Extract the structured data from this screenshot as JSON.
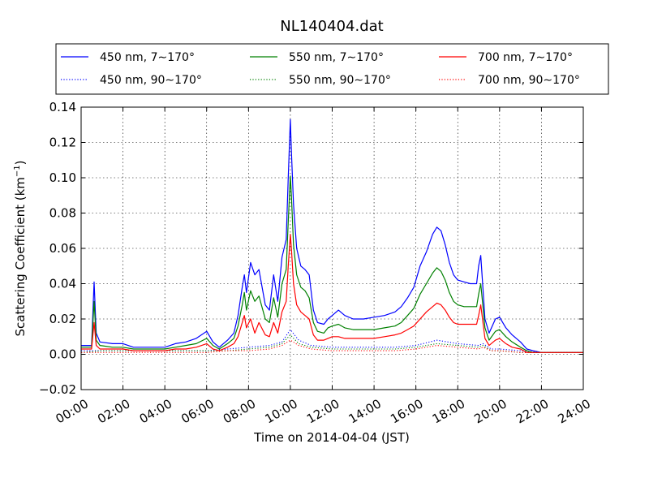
{
  "chart_data": {
    "type": "line",
    "title": "NL140404.dat",
    "xlabel": "Time on 2014-04-04 (JST)",
    "ylabel_main": "Scattering Coefficient (km",
    "ylabel_sup": "−1",
    "ylabel_close": ")",
    "xlim": [
      0,
      24
    ],
    "ylim": [
      -0.02,
      0.14
    ],
    "x_ticks": [
      0,
      2,
      4,
      6,
      8,
      10,
      12,
      14,
      16,
      18,
      20,
      22,
      24
    ],
    "x_tick_labels": [
      "00:00",
      "02:00",
      "04:00",
      "06:00",
      "08:00",
      "10:00",
      "12:00",
      "14:00",
      "16:00",
      "18:00",
      "20:00",
      "22:00",
      "24:00"
    ],
    "y_ticks": [
      -0.02,
      0.0,
      0.02,
      0.04,
      0.06,
      0.08,
      0.1,
      0.12,
      0.14
    ],
    "y_tick_labels": [
      "−0.02",
      "0.00",
      "0.02",
      "0.04",
      "0.06",
      "0.08",
      "0.10",
      "0.12",
      "0.14"
    ],
    "grid": true,
    "legend_position": "top",
    "series": [
      {
        "name": "450 nm, 7∼170°",
        "color": "#0000ff",
        "style": "solid",
        "x": [
          0,
          0.5,
          0.62,
          0.72,
          0.9,
          1.5,
          2.0,
          2.5,
          3.0,
          3.5,
          4.0,
          4.5,
          5.0,
          5.5,
          6.0,
          6.3,
          6.6,
          7.0,
          7.3,
          7.5,
          7.7,
          7.8,
          7.9,
          8.1,
          8.3,
          8.5,
          8.8,
          9.0,
          9.2,
          9.4,
          9.6,
          9.8,
          9.9,
          10.0,
          10.05,
          10.15,
          10.3,
          10.5,
          10.7,
          10.9,
          11.1,
          11.3,
          11.6,
          11.8,
          12.0,
          12.3,
          12.6,
          13.0,
          13.5,
          14.0,
          14.5,
          15.0,
          15.3,
          15.6,
          15.9,
          16.2,
          16.5,
          16.8,
          17.0,
          17.2,
          17.4,
          17.6,
          17.8,
          18.0,
          18.3,
          18.6,
          18.9,
          19.0,
          19.1,
          19.3,
          19.5,
          19.8,
          20.0,
          20.3,
          20.6,
          21.0,
          21.3,
          21.6,
          22.0,
          23.0,
          24.0
        ],
        "y": [
          0.005,
          0.005,
          0.041,
          0.012,
          0.007,
          0.006,
          0.006,
          0.004,
          0.004,
          0.004,
          0.004,
          0.006,
          0.007,
          0.009,
          0.013,
          0.007,
          0.004,
          0.008,
          0.012,
          0.022,
          0.038,
          0.045,
          0.035,
          0.052,
          0.045,
          0.048,
          0.028,
          0.025,
          0.045,
          0.03,
          0.055,
          0.065,
          0.1,
          0.133,
          0.115,
          0.085,
          0.06,
          0.05,
          0.048,
          0.045,
          0.025,
          0.018,
          0.017,
          0.02,
          0.022,
          0.025,
          0.022,
          0.02,
          0.02,
          0.021,
          0.022,
          0.024,
          0.027,
          0.032,
          0.038,
          0.05,
          0.058,
          0.068,
          0.072,
          0.07,
          0.062,
          0.052,
          0.045,
          0.042,
          0.041,
          0.04,
          0.04,
          0.05,
          0.056,
          0.02,
          0.012,
          0.02,
          0.021,
          0.015,
          0.011,
          0.007,
          0.003,
          0.002,
          0.001,
          0.001,
          0.001
        ]
      },
      {
        "name": "550 nm, 7∼170°",
        "color": "#008000",
        "style": "solid",
        "x": [
          0,
          0.5,
          0.62,
          0.72,
          0.9,
          1.5,
          2.0,
          2.5,
          3.0,
          3.5,
          4.0,
          4.5,
          5.0,
          5.5,
          6.0,
          6.3,
          6.6,
          7.0,
          7.3,
          7.5,
          7.7,
          7.8,
          7.9,
          8.1,
          8.3,
          8.5,
          8.8,
          9.0,
          9.2,
          9.4,
          9.6,
          9.8,
          9.9,
          10.0,
          10.05,
          10.15,
          10.3,
          10.5,
          10.7,
          10.9,
          11.1,
          11.3,
          11.6,
          11.8,
          12.0,
          12.3,
          12.6,
          13.0,
          13.5,
          14.0,
          14.5,
          15.0,
          15.3,
          15.6,
          15.9,
          16.2,
          16.5,
          16.8,
          17.0,
          17.2,
          17.4,
          17.6,
          17.8,
          18.0,
          18.3,
          18.6,
          18.9,
          19.0,
          19.1,
          19.3,
          19.5,
          19.8,
          20.0,
          20.3,
          20.6,
          21.0,
          21.3,
          21.6,
          22.0,
          23.0,
          24.0
        ],
        "y": [
          0.004,
          0.004,
          0.03,
          0.008,
          0.005,
          0.004,
          0.004,
          0.003,
          0.003,
          0.003,
          0.003,
          0.004,
          0.005,
          0.006,
          0.009,
          0.005,
          0.003,
          0.006,
          0.009,
          0.016,
          0.028,
          0.035,
          0.025,
          0.036,
          0.03,
          0.033,
          0.02,
          0.018,
          0.032,
          0.021,
          0.04,
          0.048,
          0.075,
          0.101,
          0.09,
          0.062,
          0.045,
          0.038,
          0.036,
          0.032,
          0.018,
          0.013,
          0.012,
          0.015,
          0.016,
          0.017,
          0.015,
          0.014,
          0.014,
          0.014,
          0.015,
          0.016,
          0.018,
          0.022,
          0.026,
          0.034,
          0.04,
          0.046,
          0.049,
          0.047,
          0.042,
          0.035,
          0.03,
          0.028,
          0.027,
          0.027,
          0.027,
          0.034,
          0.04,
          0.015,
          0.008,
          0.013,
          0.014,
          0.01,
          0.007,
          0.004,
          0.002,
          0.001,
          0.001,
          0.001,
          0.001
        ]
      },
      {
        "name": "700 nm, 7∼170°",
        "color": "#ff0000",
        "style": "solid",
        "x": [
          0,
          0.5,
          0.62,
          0.72,
          0.9,
          1.5,
          2.0,
          2.5,
          3.0,
          3.5,
          4.0,
          4.5,
          5.0,
          5.5,
          6.0,
          6.3,
          6.6,
          7.0,
          7.3,
          7.5,
          7.7,
          7.8,
          7.9,
          8.1,
          8.3,
          8.5,
          8.8,
          9.0,
          9.2,
          9.4,
          9.6,
          9.8,
          9.9,
          10.0,
          10.05,
          10.15,
          10.3,
          10.5,
          10.7,
          10.9,
          11.1,
          11.3,
          11.6,
          11.8,
          12.0,
          12.3,
          12.6,
          13.0,
          13.5,
          14.0,
          14.5,
          15.0,
          15.3,
          15.6,
          15.9,
          16.2,
          16.5,
          16.8,
          17.0,
          17.2,
          17.4,
          17.6,
          17.8,
          18.0,
          18.3,
          18.6,
          18.9,
          19.0,
          19.1,
          19.3,
          19.5,
          19.8,
          20.0,
          20.3,
          20.6,
          21.0,
          21.3,
          21.6,
          22.0,
          23.0,
          24.0
        ],
        "y": [
          0.003,
          0.003,
          0.018,
          0.005,
          0.003,
          0.003,
          0.003,
          0.002,
          0.002,
          0.002,
          0.002,
          0.003,
          0.003,
          0.004,
          0.006,
          0.003,
          0.002,
          0.004,
          0.006,
          0.01,
          0.018,
          0.022,
          0.015,
          0.02,
          0.012,
          0.018,
          0.011,
          0.01,
          0.018,
          0.012,
          0.024,
          0.03,
          0.05,
          0.068,
          0.06,
          0.04,
          0.028,
          0.024,
          0.022,
          0.02,
          0.011,
          0.008,
          0.008,
          0.009,
          0.01,
          0.01,
          0.009,
          0.009,
          0.009,
          0.009,
          0.01,
          0.011,
          0.012,
          0.014,
          0.016,
          0.02,
          0.024,
          0.027,
          0.029,
          0.028,
          0.025,
          0.021,
          0.018,
          0.017,
          0.017,
          0.017,
          0.017,
          0.022,
          0.028,
          0.009,
          0.005,
          0.008,
          0.009,
          0.006,
          0.004,
          0.003,
          0.001,
          0.001,
          0.001,
          0.001,
          0.001
        ]
      },
      {
        "name": "450 nm, 90∼170°",
        "color": "#0000ff",
        "style": "dotted",
        "x": [
          0,
          1,
          2,
          3,
          4,
          5,
          6,
          7,
          8,
          9,
          9.6,
          10.0,
          10.4,
          11,
          12,
          13,
          14,
          15,
          16,
          17,
          18,
          19,
          19.2,
          19.6,
          20,
          21,
          22,
          23,
          24
        ],
        "y": [
          0.002,
          0.002,
          0.002,
          0.002,
          0.002,
          0.002,
          0.002,
          0.003,
          0.004,
          0.005,
          0.007,
          0.014,
          0.008,
          0.005,
          0.004,
          0.004,
          0.004,
          0.004,
          0.005,
          0.008,
          0.006,
          0.005,
          0.006,
          0.003,
          0.003,
          0.002,
          0.001,
          0.001,
          0.001
        ]
      },
      {
        "name": "550 nm, 90∼170°",
        "color": "#008000",
        "style": "dotted",
        "x": [
          0,
          1,
          2,
          3,
          4,
          5,
          6,
          7,
          8,
          9,
          9.6,
          10.0,
          10.4,
          11,
          12,
          13,
          14,
          15,
          16,
          17,
          18,
          19,
          19.2,
          19.6,
          20,
          21,
          22,
          23,
          24
        ],
        "y": [
          0.001,
          0.002,
          0.002,
          0.002,
          0.002,
          0.002,
          0.002,
          0.002,
          0.003,
          0.004,
          0.006,
          0.011,
          0.006,
          0.004,
          0.003,
          0.003,
          0.003,
          0.003,
          0.004,
          0.006,
          0.005,
          0.004,
          0.005,
          0.002,
          0.002,
          0.001,
          0.001,
          0.001,
          0.001
        ]
      },
      {
        "name": "700 nm, 90∼170°",
        "color": "#ff0000",
        "style": "dotted",
        "x": [
          0,
          1,
          2,
          3,
          4,
          5,
          6,
          7,
          8,
          9,
          9.6,
          10.0,
          10.4,
          11,
          12,
          13,
          14,
          15,
          16,
          17,
          18,
          19,
          19.2,
          19.6,
          20,
          21,
          22,
          23,
          24
        ],
        "y": [
          0.001,
          0.001,
          0.001,
          0.001,
          0.001,
          0.001,
          0.001,
          0.002,
          0.002,
          0.003,
          0.005,
          0.008,
          0.005,
          0.003,
          0.002,
          0.002,
          0.002,
          0.002,
          0.003,
          0.005,
          0.004,
          0.003,
          0.004,
          0.002,
          0.002,
          0.001,
          0.001,
          0.001,
          0.001
        ]
      }
    ]
  }
}
